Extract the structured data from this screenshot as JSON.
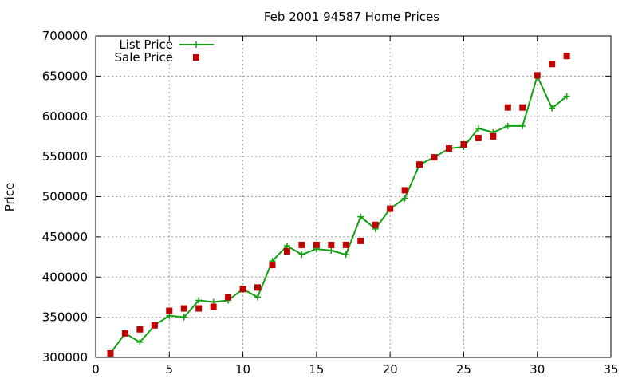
{
  "chart_data": {
    "type": "line",
    "title": "Feb 2001 94587 Home Prices",
    "xlabel": "",
    "ylabel": "Price",
    "xlim": [
      0,
      35
    ],
    "ylim": [
      300000,
      700000
    ],
    "xticks": [
      0,
      5,
      10,
      15,
      20,
      25,
      30,
      35
    ],
    "yticks": [
      300000,
      350000,
      400000,
      450000,
      500000,
      550000,
      600000,
      650000,
      700000
    ],
    "grid": true,
    "legend_position": "top-left",
    "series": [
      {
        "name": "List Price",
        "style": "line+cross",
        "color": "#11a011",
        "x": [
          1,
          2,
          3,
          4,
          5,
          6,
          7,
          8,
          9,
          10,
          11,
          12,
          13,
          14,
          15,
          16,
          17,
          18,
          19,
          20,
          21,
          22,
          23,
          24,
          25,
          26,
          27,
          28,
          29,
          30,
          31,
          32
        ],
        "y": [
          305000,
          330000,
          319000,
          340000,
          352000,
          350000,
          371000,
          369000,
          371000,
          385000,
          375000,
          420000,
          439000,
          428000,
          435000,
          433000,
          428000,
          475000,
          460000,
          485000,
          498000,
          540000,
          549000,
          560000,
          562000,
          585000,
          580000,
          588000,
          588000,
          650000,
          610000,
          625000
        ]
      },
      {
        "name": "Sale Price",
        "style": "square",
        "color": "#c00000",
        "x": [
          1,
          2,
          3,
          4,
          5,
          6,
          7,
          8,
          9,
          10,
          11,
          12,
          13,
          14,
          15,
          16,
          17,
          18,
          19,
          20,
          21,
          22,
          23,
          24,
          25,
          26,
          27,
          28,
          29,
          30,
          31,
          32
        ],
        "y": [
          305000,
          330000,
          335000,
          340000,
          358000,
          361000,
          361000,
          363000,
          375000,
          385000,
          387000,
          415000,
          432000,
          440000,
          440000,
          440000,
          440000,
          445000,
          465000,
          485000,
          508000,
          540000,
          549000,
          560000,
          565000,
          573000,
          575000,
          611000,
          611000,
          651000,
          665000,
          675000
        ]
      }
    ]
  }
}
